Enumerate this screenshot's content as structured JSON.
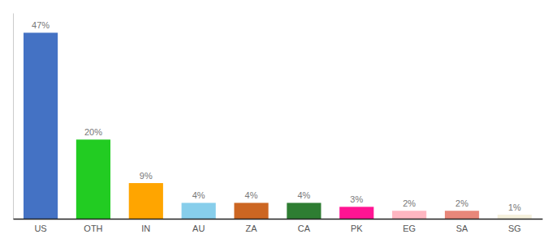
{
  "chart_data": {
    "type": "bar",
    "categories": [
      "US",
      "OTH",
      "IN",
      "AU",
      "ZA",
      "CA",
      "PK",
      "EG",
      "SA",
      "SG"
    ],
    "values": [
      47,
      20,
      9,
      4,
      4,
      4,
      3,
      2,
      2,
      1
    ],
    "value_labels": [
      "47%",
      "20%",
      "9%",
      "4%",
      "4%",
      "4%",
      "3%",
      "2%",
      "2%",
      "1%"
    ],
    "colors": [
      "#4472C4",
      "#22CC22",
      "#FFA500",
      "#87CEEB",
      "#CC6622",
      "#2E7D32",
      "#FF1493",
      "#FFB6C1",
      "#E8877A",
      "#F5F0DC"
    ],
    "ylim": [
      0,
      52
    ],
    "data_labels": true,
    "tick_labels": "x"
  }
}
